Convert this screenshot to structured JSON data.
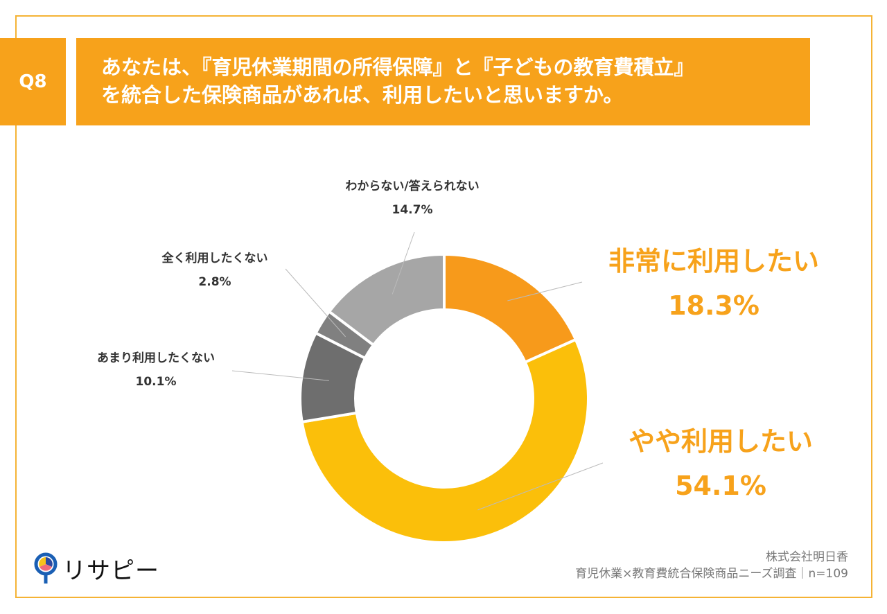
{
  "header": {
    "q_label": "Q8",
    "title_line1": "あなたは、『育児休業期間の所得保障』と『子どもの教育費積立』",
    "title_line2": "を統合した保険商品があれば、利用したいと思いますか。"
  },
  "chart_data": {
    "type": "pie",
    "donut": true,
    "title": "あなたは、『育児休業期間の所得保障』と『子どもの教育費積立』を統合した保険商品があれば、利用したいと思いますか。",
    "categories": [
      "非常に利用したい",
      "やや利用したい",
      "あまり利用したくない",
      "全く利用したくない",
      "わからない/答えられない"
    ],
    "values": [
      18.3,
      54.1,
      10.1,
      2.8,
      14.7
    ],
    "labels": [
      "18.3%",
      "54.1%",
      "10.1%",
      "2.8%",
      "14.7%"
    ],
    "colors": [
      "#f79a1b",
      "#fbbf0a",
      "#6e6e6e",
      "#808080",
      "#a6a6a6"
    ]
  },
  "footer": {
    "company": "株式会社明日香",
    "survey": "育児休業×教育費統合保険商品ニーズ調査｜n=109",
    "logo_text": "リサピー"
  }
}
